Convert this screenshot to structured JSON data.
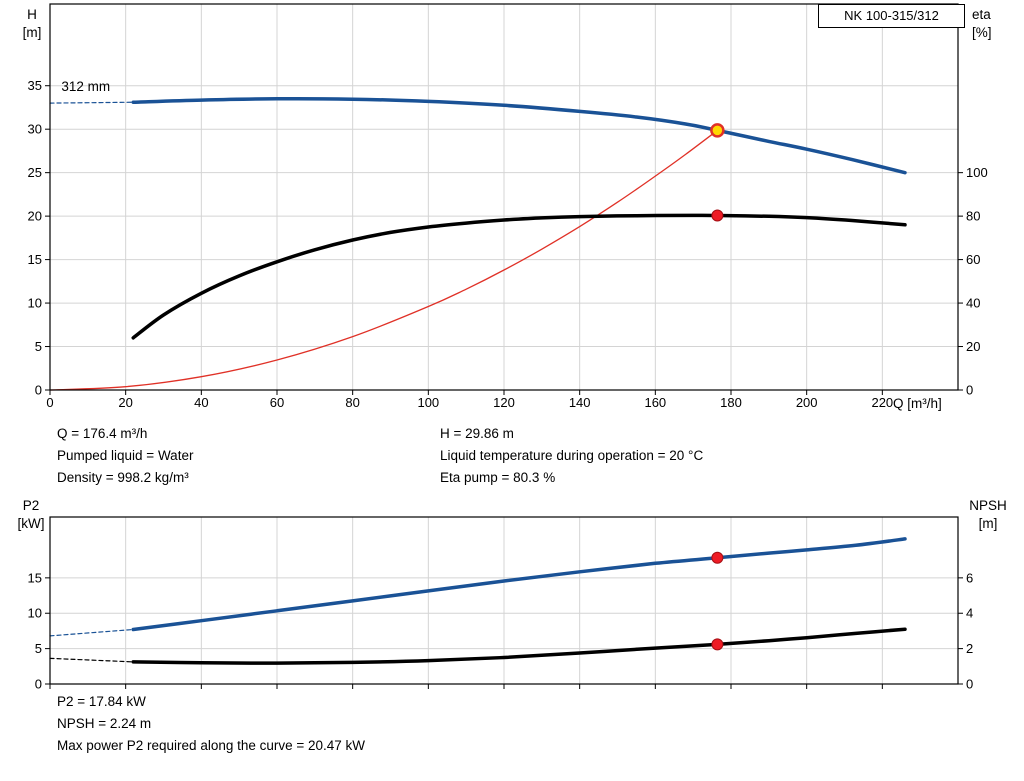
{
  "header": {
    "model": "NK 100-315/312"
  },
  "axes_labels": {
    "top_left_line1": "H",
    "top_left_line2": "[m]",
    "top_right_line1": "eta",
    "top_right_line2": "[%]",
    "x_title": "Q [m³/h]",
    "bottom_left_line1": "P2",
    "bottom_left_line2": "[kW]",
    "bottom_right_line1": "NPSH",
    "bottom_right_line2": "[m]"
  },
  "operating_info": {
    "col1": [
      "Q = 176.4 m³/h",
      "Pumped liquid = Water",
      "Density = 998.2 kg/m³"
    ],
    "col2": [
      "H = 29.86 m",
      "Liquid temperature during operation = 20 °C",
      "Eta pump = 80.3 %"
    ]
  },
  "power_info": [
    "P2 = 17.84 kW",
    "NPSH = 2.24 m",
    "Max power P2 required along the curve = 20.47 kW"
  ],
  "colors": {
    "curve_blue": "#1a5296",
    "curve_black": "#000000",
    "system_red": "#e03127",
    "marker_red": "#ee1c25",
    "marker_yellow": "#ffd800",
    "grid": "#d4d4d4"
  },
  "chart_data": [
    {
      "type": "line",
      "title": "NK 100-315/312",
      "xlabel": "Q [m³/h]",
      "ylabel_left": "H [m]",
      "ylabel_right": "eta [%]",
      "xlim": [
        0,
        240
      ],
      "ylim_left": [
        0,
        44.4
      ],
      "ylim_right": [
        0,
        177.6
      ],
      "x_ticks": [
        0,
        20,
        40,
        60,
        80,
        100,
        120,
        140,
        160,
        180,
        200,
        220
      ],
      "left_ticks": [
        0,
        5,
        10,
        15,
        20,
        25,
        30,
        35
      ],
      "right_ticks": [
        0,
        20,
        40,
        60,
        80,
        100
      ],
      "grid": true,
      "legend": "none",
      "annotation": {
        "text": "312 mm",
        "q": 3,
        "v": 34.4
      },
      "series": [
        {
          "name": "head-dashed-leadin",
          "axis": "left",
          "color": "#1a5296",
          "width": 1.2,
          "dash": "4 3",
          "points": [
            [
              0,
              33.0
            ],
            [
              22,
              33.1
            ]
          ]
        },
        {
          "name": "system-curve",
          "axis": "left",
          "color": "#e03127",
          "width": 1.3,
          "points": [
            [
              0,
              0
            ],
            [
              20,
              0.38
            ],
            [
              40,
              1.53
            ],
            [
              60,
              3.45
            ],
            [
              80,
              6.14
            ],
            [
              100,
              9.6
            ],
            [
              110,
              11.6
            ],
            [
              120,
              13.8
            ],
            [
              130,
              16.2
            ],
            [
              140,
              18.8
            ],
            [
              150,
              21.6
            ],
            [
              160,
              24.6
            ],
            [
              168,
              27.1
            ],
            [
              176.4,
              29.86
            ]
          ]
        },
        {
          "name": "efficiency-eta",
          "axis": "right",
          "color": "#000000",
          "width": 3.5,
          "points": [
            [
              22,
              24
            ],
            [
              30,
              34.5
            ],
            [
              40,
              44.5
            ],
            [
              50,
              52.5
            ],
            [
              60,
              59
            ],
            [
              70,
              64.5
            ],
            [
              80,
              69
            ],
            [
              90,
              72.5
            ],
            [
              100,
              75
            ],
            [
              110,
              76.8
            ],
            [
              120,
              78.2
            ],
            [
              130,
              79.2
            ],
            [
              140,
              79.8
            ],
            [
              155,
              80.2
            ],
            [
              170,
              80.35
            ],
            [
              176.4,
              80.3
            ],
            [
              190,
              79.9
            ],
            [
              200,
              79.3
            ],
            [
              212,
              78
            ],
            [
              226,
              76
            ]
          ]
        },
        {
          "name": "head-312mm",
          "axis": "left",
          "color": "#1a5296",
          "width": 3.5,
          "points": [
            [
              22,
              33.1
            ],
            [
              40,
              33.35
            ],
            [
              60,
              33.5
            ],
            [
              80,
              33.45
            ],
            [
              100,
              33.2
            ],
            [
              120,
              32.75
            ],
            [
              140,
              32.05
            ],
            [
              155,
              31.4
            ],
            [
              168,
              30.6
            ],
            [
              176.4,
              29.86
            ],
            [
              190,
              28.6
            ],
            [
              200,
              27.7
            ],
            [
              212,
              26.5
            ],
            [
              226,
              25.0
            ]
          ]
        }
      ],
      "markers": [
        {
          "name": "duty-point-eta",
          "axis": "right",
          "q": 176.4,
          "v": 80.3,
          "r": 5.5,
          "fill": "#ee1c25",
          "stroke": "#a50f14",
          "sw": 1
        },
        {
          "name": "duty-point-head",
          "axis": "left",
          "q": 176.4,
          "v": 29.86,
          "r": 6,
          "fill": "#ffd800",
          "stroke": "#e03127",
          "sw": 2.5
        }
      ]
    },
    {
      "type": "line",
      "title": "P2 and NPSH curves",
      "xlabel": "Q [m³/h]",
      "ylabel_left": "P2 [kW]",
      "ylabel_right": "NPSH [m]",
      "xlim": [
        0,
        240
      ],
      "ylim_left": [
        0,
        23.6
      ],
      "ylim_right": [
        0,
        9.44
      ],
      "x_ticks": [
        0,
        20,
        40,
        60,
        80,
        100,
        120,
        140,
        160,
        180,
        200,
        220
      ],
      "left_ticks": [
        0,
        5,
        10,
        15
      ],
      "right_ticks": [
        0,
        2,
        4,
        6
      ],
      "grid": true,
      "legend": "none",
      "series": [
        {
          "name": "p2-dashed-leadin",
          "axis": "left",
          "color": "#1a5296",
          "width": 1.2,
          "dash": "4 3",
          "points": [
            [
              0,
              6.8
            ],
            [
              22,
              7.7
            ]
          ]
        },
        {
          "name": "npsh-dashed-leadin",
          "axis": "right",
          "color": "#000000",
          "width": 1.2,
          "dash": "4 3",
          "points": [
            [
              0,
              1.45
            ],
            [
              22,
              1.25
            ]
          ]
        },
        {
          "name": "npsh",
          "axis": "right",
          "color": "#000000",
          "width": 3.5,
          "points": [
            [
              22,
              1.25
            ],
            [
              40,
              1.2
            ],
            [
              60,
              1.18
            ],
            [
              80,
              1.22
            ],
            [
              100,
              1.32
            ],
            [
              120,
              1.5
            ],
            [
              140,
              1.75
            ],
            [
              160,
              2.03
            ],
            [
              176.4,
              2.24
            ],
            [
              190,
              2.45
            ],
            [
              200,
              2.62
            ],
            [
              213,
              2.86
            ],
            [
              226,
              3.1
            ]
          ]
        },
        {
          "name": "p2",
          "axis": "left",
          "color": "#1a5296",
          "width": 3.5,
          "points": [
            [
              22,
              7.7
            ],
            [
              40,
              8.95
            ],
            [
              60,
              10.35
            ],
            [
              80,
              11.75
            ],
            [
              100,
              13.15
            ],
            [
              120,
              14.55
            ],
            [
              140,
              15.85
            ],
            [
              160,
              17.05
            ],
            [
              176.4,
              17.84
            ],
            [
              190,
              18.5
            ],
            [
              200,
              18.95
            ],
            [
              213,
              19.6
            ],
            [
              226,
              20.5
            ]
          ]
        }
      ],
      "markers": [
        {
          "name": "duty-point-p2",
          "axis": "left",
          "q": 176.4,
          "v": 17.84,
          "r": 5.5,
          "fill": "#ee1c25",
          "stroke": "#a50f14",
          "sw": 1
        },
        {
          "name": "duty-point-npsh",
          "axis": "right",
          "q": 176.4,
          "v": 2.24,
          "r": 5.5,
          "fill": "#ee1c25",
          "stroke": "#a50f14",
          "sw": 1
        }
      ]
    }
  ]
}
